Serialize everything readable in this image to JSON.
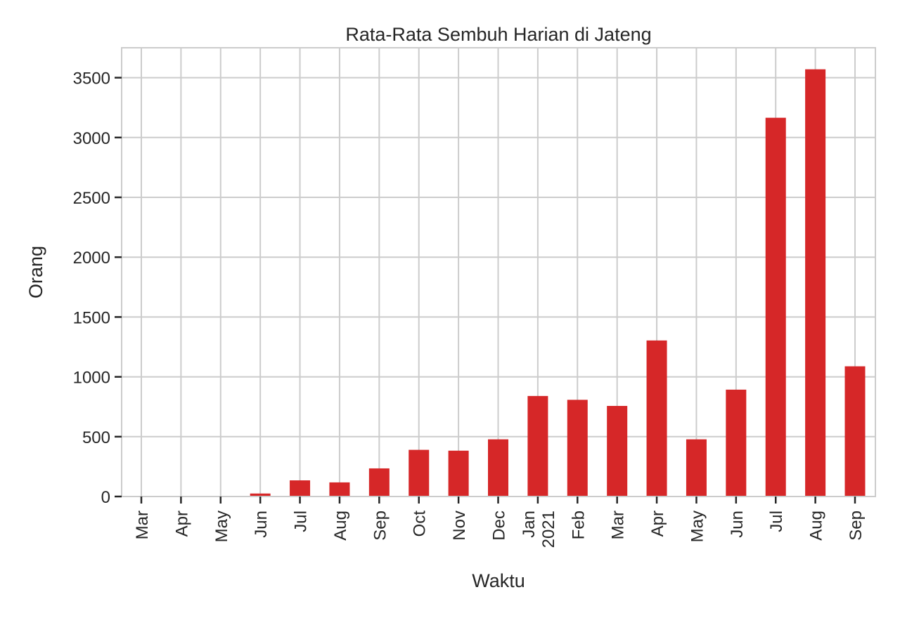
{
  "chart_data": {
    "type": "bar",
    "title": "Rata-Rata Sembuh Harian di Jateng",
    "xlabel": "Waktu",
    "ylabel": "Orang",
    "categories": [
      "Mar",
      "Apr",
      "May",
      "Jun",
      "Jul",
      "Aug",
      "Sep",
      "Oct",
      "Nov",
      "Dec",
      "Jan\n2021",
      "Feb",
      "Mar",
      "Apr",
      "May",
      "Jun",
      "Jul",
      "Aug",
      "Sep"
    ],
    "values": [
      0,
      0,
      0,
      25,
      135,
      118,
      235,
      390,
      383,
      478,
      840,
      808,
      757,
      1304,
      478,
      893,
      3165,
      3570,
      1088
    ],
    "ylim": [
      0,
      3750
    ],
    "yticks": [
      0,
      500,
      1000,
      1500,
      2000,
      2500,
      3000,
      3500
    ],
    "bar_color": "#d62728",
    "grid": true
  }
}
